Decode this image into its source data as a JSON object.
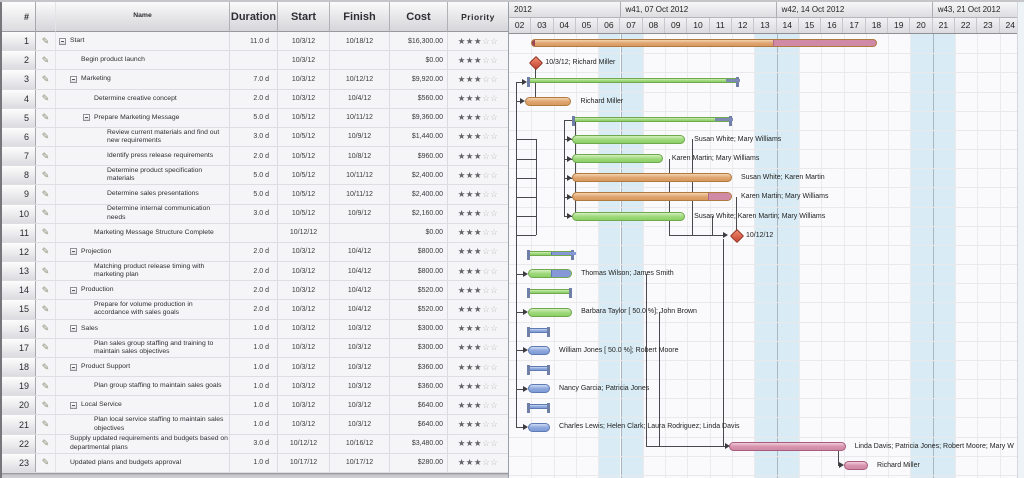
{
  "table": {
    "columns": {
      "num": "#",
      "icon": "",
      "name": "Name",
      "duration": "Duration",
      "start": "Start",
      "finish": "Finish",
      "cost": "Cost",
      "priority": "Priority"
    },
    "priority_max": 5,
    "rows": [
      {
        "num": 1,
        "name": "Start",
        "indent": 3,
        "collapse": true,
        "duration": "11.0 d",
        "start": "10/3/12",
        "finish": "10/18/12",
        "cost": "$16,300.00",
        "priority": 3
      },
      {
        "num": 2,
        "name": "Begin product launch",
        "indent": 25,
        "collapse": false,
        "duration": "",
        "start": "10/3/12",
        "finish": "",
        "cost": "$0.00",
        "priority": 3
      },
      {
        "num": 3,
        "name": "Marketing",
        "indent": 14,
        "collapse": true,
        "duration": "7.0 d",
        "start": "10/3/12",
        "finish": "10/12/12",
        "cost": "$9,920.00",
        "priority": 3
      },
      {
        "num": 4,
        "name": "Determine creative concept",
        "indent": 38,
        "collapse": false,
        "duration": "2.0 d",
        "start": "10/3/12",
        "finish": "10/4/12",
        "cost": "$560.00",
        "priority": 3
      },
      {
        "num": 5,
        "name": "Prepare Marketing Message",
        "indent": 27,
        "collapse": true,
        "duration": "5.0 d",
        "start": "10/5/12",
        "finish": "10/11/12",
        "cost": "$9,360.00",
        "priority": 3
      },
      {
        "num": 6,
        "name": "Review current materials and find out new requirements",
        "indent": 51,
        "collapse": false,
        "duration": "3.0 d",
        "start": "10/5/12",
        "finish": "10/9/12",
        "cost": "$1,440.00",
        "priority": 3
      },
      {
        "num": 7,
        "name": "Identify press release requirements",
        "indent": 51,
        "collapse": false,
        "duration": "2.0 d",
        "start": "10/5/12",
        "finish": "10/8/12",
        "cost": "$960.00",
        "priority": 3
      },
      {
        "num": 8,
        "name": "Determine product specification materials",
        "indent": 51,
        "collapse": false,
        "duration": "5.0 d",
        "start": "10/5/12",
        "finish": "10/11/12",
        "cost": "$2,400.00",
        "priority": 3
      },
      {
        "num": 9,
        "name": "Determine sales presentations",
        "indent": 51,
        "collapse": false,
        "duration": "5.0 d",
        "start": "10/5/12",
        "finish": "10/11/12",
        "cost": "$2,400.00",
        "priority": 3
      },
      {
        "num": 10,
        "name": "Determine internal communication needs",
        "indent": 51,
        "collapse": false,
        "duration": "3.0 d",
        "start": "10/5/12",
        "finish": "10/9/12",
        "cost": "$2,160.00",
        "priority": 3
      },
      {
        "num": 11,
        "name": "Marketing Message Structure Complete",
        "indent": 38,
        "collapse": false,
        "duration": "",
        "start": "10/12/12",
        "finish": "",
        "cost": "$0.00",
        "priority": 3
      },
      {
        "num": 12,
        "name": "Projection",
        "indent": 14,
        "collapse": true,
        "duration": "2.0 d",
        "start": "10/3/12",
        "finish": "10/4/12",
        "cost": "$800.00",
        "priority": 3
      },
      {
        "num": 13,
        "name": "Matching product release timing with marketing plan",
        "indent": 38,
        "collapse": false,
        "duration": "2.0 d",
        "start": "10/3/12",
        "finish": "10/4/12",
        "cost": "$800.00",
        "priority": 3
      },
      {
        "num": 14,
        "name": "Production",
        "indent": 14,
        "collapse": true,
        "duration": "2.0 d",
        "start": "10/3/12",
        "finish": "10/4/12",
        "cost": "$520.00",
        "priority": 3
      },
      {
        "num": 15,
        "name": "Prepare for volume production in accordance with sales goals",
        "indent": 38,
        "collapse": false,
        "duration": "2.0 d",
        "start": "10/3/12",
        "finish": "10/4/12",
        "cost": "$520.00",
        "priority": 3
      },
      {
        "num": 16,
        "name": "Sales",
        "indent": 14,
        "collapse": true,
        "duration": "1.0 d",
        "start": "10/3/12",
        "finish": "10/3/12",
        "cost": "$300.00",
        "priority": 3
      },
      {
        "num": 17,
        "name": "Plan sales group staffing and training to maintain sales objectives",
        "indent": 38,
        "collapse": false,
        "duration": "1.0 d",
        "start": "10/3/12",
        "finish": "10/3/12",
        "cost": "$300.00",
        "priority": 3
      },
      {
        "num": 18,
        "name": "Product Support",
        "indent": 14,
        "collapse": true,
        "duration": "1.0 d",
        "start": "10/3/12",
        "finish": "10/3/12",
        "cost": "$360.00",
        "priority": 3
      },
      {
        "num": 19,
        "name": "Plan group staffing to maintain sales goals",
        "indent": 38,
        "collapse": false,
        "duration": "1.0 d",
        "start": "10/3/12",
        "finish": "10/3/12",
        "cost": "$360.00",
        "priority": 3
      },
      {
        "num": 20,
        "name": "Local Service",
        "indent": 14,
        "collapse": true,
        "duration": "1.0 d",
        "start": "10/3/12",
        "finish": "10/3/12",
        "cost": "$640.00",
        "priority": 3
      },
      {
        "num": 21,
        "name": "Plan local service staffing to maintain sales objectives",
        "indent": 38,
        "collapse": false,
        "duration": "1.0 d",
        "start": "10/3/12",
        "finish": "10/3/12",
        "cost": "$640.00",
        "priority": 3
      },
      {
        "num": 22,
        "name": "Supply updated requirements and budgets based on departmental plans",
        "indent": 14,
        "collapse": false,
        "duration": "3.0 d",
        "start": "10/12/12",
        "finish": "10/16/12",
        "cost": "$3,480.00",
        "priority": 3
      },
      {
        "num": 23,
        "name": "Updated plans and budgets approval",
        "indent": 14,
        "collapse": false,
        "duration": "1.0 d",
        "start": "10/17/12",
        "finish": "10/17/12",
        "cost": "$280.00",
        "priority": 3
      }
    ]
  },
  "gantt": {
    "weeks": [
      {
        "label": "2012",
        "from": 2,
        "to": 7
      },
      {
        "label": "w41, 07 Oct 2012",
        "from": 7,
        "to": 14
      },
      {
        "label": "w42, 14 Oct 2012",
        "from": 14,
        "to": 21
      },
      {
        "label": "w43, 21 Oct 2012",
        "from": 21,
        "to": 25.2
      }
    ],
    "days": [
      "02",
      "03",
      "04",
      "05",
      "06",
      "07",
      "08",
      "09",
      "10",
      "11",
      "12",
      "13",
      "14",
      "15",
      "16",
      "17",
      "18",
      "19",
      "20",
      "21",
      "22",
      "23",
      "24"
    ],
    "weekend_days": [
      6,
      7,
      13,
      14,
      20,
      21
    ],
    "bars": [
      {
        "row": 1,
        "kind": "summary-big",
        "from": 3,
        "to": 18.5,
        "color": "orange",
        "segs": [
          {
            "from": 13.8,
            "to": 18.5,
            "color": "pink"
          }
        ]
      },
      {
        "row": 2,
        "kind": "milestone",
        "at": 3,
        "label": "10/3/12; Richard Miller"
      },
      {
        "row": 3,
        "kind": "summary",
        "from": 2.8,
        "to": 12.3,
        "color": "green",
        "segs": [
          {
            "from": 11.7,
            "to": 12.3,
            "color": "slate"
          }
        ]
      },
      {
        "row": 4,
        "kind": "task",
        "from": 2.7,
        "to": 4.8,
        "color": "orange",
        "label": "Richard Miller"
      },
      {
        "row": 5,
        "kind": "summary",
        "from": 4.83,
        "to": 12.0,
        "color": "green",
        "segs": [
          {
            "from": 11.2,
            "to": 12.0,
            "color": "slate"
          }
        ]
      },
      {
        "row": 6,
        "kind": "task",
        "from": 4.83,
        "to": 9.9,
        "color": "green",
        "label": "Susan White; Mary Williams"
      },
      {
        "row": 7,
        "kind": "task",
        "from": 4.83,
        "to": 8.9,
        "color": "green",
        "label": "Karen Martin; Mary Williams"
      },
      {
        "row": 8,
        "kind": "task",
        "from": 4.83,
        "to": 12.0,
        "color": "orange",
        "label": "Susan White; Karen Martin"
      },
      {
        "row": 9,
        "kind": "task",
        "from": 4.83,
        "to": 12.0,
        "color": "orange",
        "segs": [
          {
            "from": 10.9,
            "to": 12.0,
            "color": "pink"
          }
        ],
        "label": "Karen Martin; Mary Williams"
      },
      {
        "row": 10,
        "kind": "task",
        "from": 4.83,
        "to": 9.9,
        "color": "green",
        "label": "Susan White; Karen Martin; Mary Williams"
      },
      {
        "row": 11,
        "kind": "milestone",
        "at": 12,
        "label": "10/12/12"
      },
      {
        "row": 12,
        "kind": "summary",
        "from": 2.8,
        "to": 4.9,
        "color": "green",
        "segs": [
          {
            "from": 3.84,
            "to": 4.9,
            "color": "blue"
          }
        ]
      },
      {
        "row": 13,
        "kind": "task",
        "from": 2.83,
        "to": 4.83,
        "color": "green",
        "segs": [
          {
            "from": 3.84,
            "to": 4.83,
            "color": "blue"
          }
        ],
        "label": "Thomas Wilson; James Smith"
      },
      {
        "row": 14,
        "kind": "summary",
        "from": 2.8,
        "to": 4.83,
        "color": "green"
      },
      {
        "row": 15,
        "kind": "task",
        "from": 2.83,
        "to": 4.83,
        "color": "green",
        "label": "Barbara Taylor [ 50.0 %]; John Brown"
      },
      {
        "row": 16,
        "kind": "summary",
        "from": 2.8,
        "to": 3.84,
        "color": "blue"
      },
      {
        "row": 17,
        "kind": "task",
        "from": 2.83,
        "to": 3.84,
        "color": "blue",
        "label": "William Jones [ 50.0 %]; Robert Moore"
      },
      {
        "row": 18,
        "kind": "summary",
        "from": 2.8,
        "to": 3.84,
        "color": "blue"
      },
      {
        "row": 19,
        "kind": "task",
        "from": 2.83,
        "to": 3.84,
        "color": "blue",
        "label": "Nancy Garcia; Patricia Jones"
      },
      {
        "row": 20,
        "kind": "summary",
        "from": 2.8,
        "to": 3.84,
        "color": "blue"
      },
      {
        "row": 21,
        "kind": "task",
        "from": 2.83,
        "to": 3.84,
        "color": "blue",
        "label": "Charles Lewis; Helen Clark; Laura Rodriguez; Linda Davis"
      },
      {
        "row": 22,
        "kind": "task",
        "from": 11.87,
        "to": 17.1,
        "color": "pink",
        "label": "Linda Davis; Patricia Jones; Robert Moore; Mary W"
      },
      {
        "row": 23,
        "kind": "task",
        "from": 17.0,
        "to": 18.1,
        "color": "pink",
        "label": "Richard Miller"
      }
    ]
  },
  "icons": {
    "row_edit": "task-edit-icon",
    "collapse": "collapse-minus-icon",
    "milestone": "milestone-diamond-icon",
    "star_filled": "★",
    "star_empty": "☆"
  },
  "colors": {
    "bar_green": "#9ed97c",
    "bar_orange": "#dfa672",
    "bar_blue": "#8fa9dd",
    "bar_pink": "#d794ad",
    "milestone_red": "#c7432f",
    "weekend_band": "#d9ecf5",
    "header_gray": "#dcdce0"
  }
}
